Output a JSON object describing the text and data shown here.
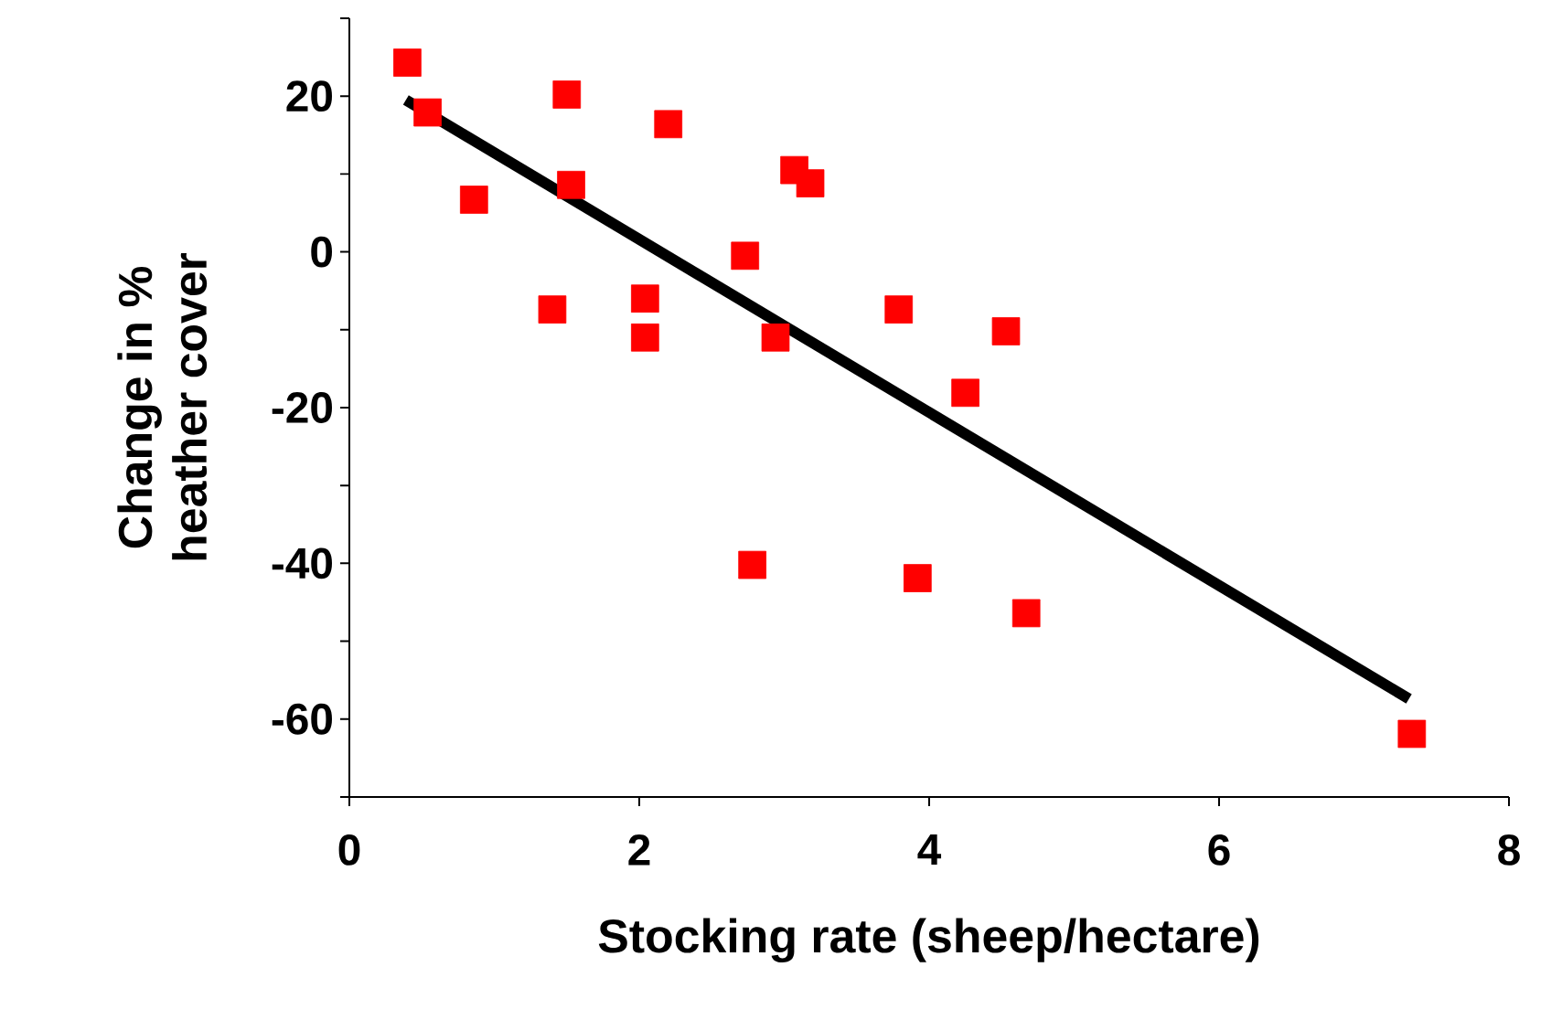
{
  "chart_data": {
    "type": "scatter",
    "xlabel": "Stocking rate (sheep/hectare)",
    "ylabel": "Change in %\nheather cover",
    "grid": false,
    "xlim": [
      0,
      8
    ],
    "xticks": [
      0,
      2,
      4,
      6,
      8
    ],
    "ylim": [
      -70,
      30
    ],
    "yticks": [
      {
        "value": -70,
        "label": null
      },
      -60,
      {
        "value": -50,
        "label": null
      },
      -40,
      {
        "value": -30,
        "label": null
      },
      -20,
      {
        "value": -10,
        "label": null
      },
      0,
      {
        "value": 10,
        "label": null
      },
      20,
      {
        "value": 30,
        "label": null
      }
    ],
    "series": [
      {
        "marker": "square",
        "color": "#ff0000",
        "x": [
          0.4,
          0.54,
          0.86,
          1.5,
          1.53,
          1.4,
          2.04,
          2.04,
          2.2,
          2.73,
          2.78,
          2.94,
          3.07,
          3.18,
          3.79,
          3.92,
          4.25,
          4.53,
          4.67,
          7.33
        ],
        "values": [
          24.3,
          17.9,
          6.7,
          20.2,
          8.6,
          -7.4,
          -6.0,
          -11,
          16.4,
          -0.5,
          -40.2,
          -11,
          10.5,
          8.8,
          -7.4,
          -41.9,
          -18.1,
          -10.2,
          -46.4,
          -61.9
        ]
      },
      {
        "type": "line",
        "color": "#000000",
        "x": [
          0.39,
          7.31
        ],
        "values": [
          19.5,
          -57.4
        ]
      }
    ]
  }
}
